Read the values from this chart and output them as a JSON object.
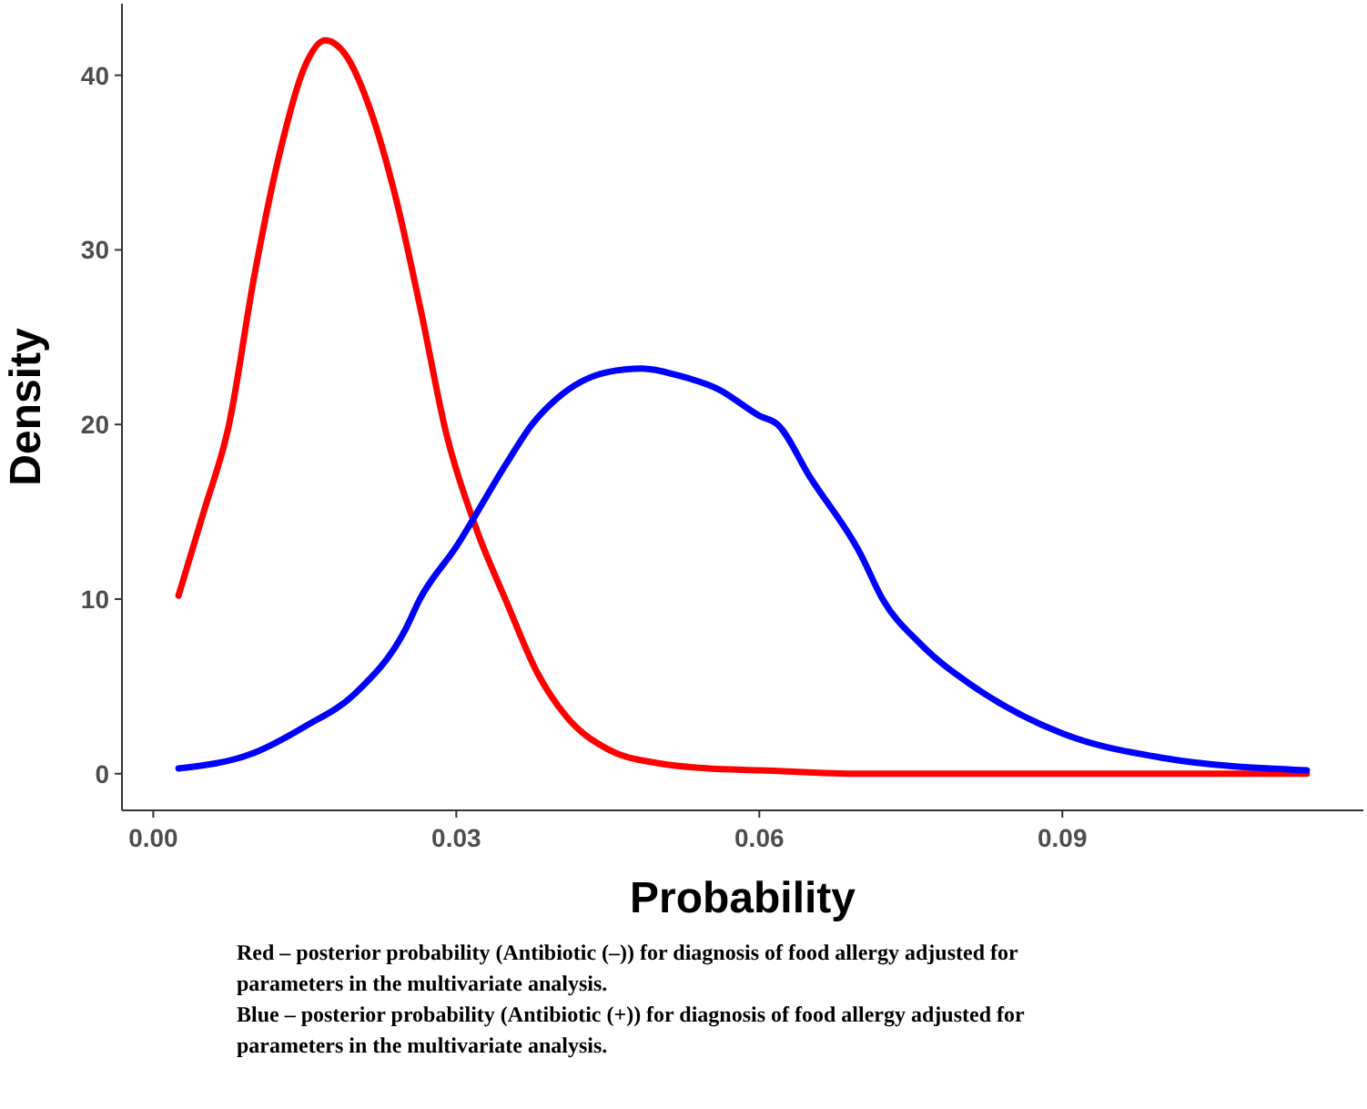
{
  "chart_data": {
    "type": "line",
    "xlabel": "Probability",
    "ylabel": "Density",
    "xlim": [
      -0.0031,
      0.1198
    ],
    "xticks": [
      {
        "value": 0,
        "label": "0.00"
      },
      {
        "value": 0.03,
        "label": "0.03"
      },
      {
        "value": 0.06,
        "label": "0.06"
      },
      {
        "value": 0.09,
        "label": "0.09"
      }
    ],
    "ylim": [
      -2.1,
      44.1
    ],
    "yticks": [
      0,
      10,
      20,
      30,
      40
    ],
    "grid": false,
    "line_style": "solid",
    "marker": "none",
    "series": [
      {
        "color": "#ff0000",
        "x": [
          0.0025,
          0.005,
          0.0075,
          0.01,
          0.0125,
          0.015,
          0.017,
          0.019,
          0.0215,
          0.024,
          0.0265,
          0.029,
          0.032,
          0.035,
          0.038,
          0.041,
          0.045,
          0.05,
          0.055,
          0.06,
          0.07,
          0.08,
          0.1142
        ],
        "values": [
          10.2,
          15,
          20,
          28.5,
          35.5,
          40.5,
          42,
          41.2,
          38,
          33,
          26.5,
          19.5,
          14,
          9.8,
          5.8,
          3.2,
          1.4,
          0.6,
          0.3,
          0.2,
          0,
          0,
          0
        ]
      },
      {
        "color": "#0000ff",
        "x": [
          0.0025,
          0.01,
          0.015,
          0.02,
          0.025,
          0.0264,
          0.03,
          0.035,
          0.0375,
          0.04,
          0.045,
          0.0484,
          0.052,
          0.056,
          0.06,
          0.0618,
          0.065,
          0.07,
          0.0722,
          0.076,
          0.0812,
          0.09,
          0.1,
          0.1142
        ],
        "values": [
          0.3,
          1.2,
          2.7,
          4.6,
          8.3,
          10,
          13,
          17.8,
          20,
          21.5,
          23,
          23.2,
          22.8,
          22,
          20.5,
          20,
          17,
          12.6,
          10,
          7.4,
          5,
          2.3,
          0.9,
          0.2
        ]
      }
    ],
    "annotations": [
      "Red – posterior probability (Antibiotic (–)) for diagnosis of food allergy adjusted for parameters in the multivariate analysis.",
      "Blue – posterior probability (Antibiotic (+)) for diagnosis of food allergy adjusted for parameters in the multivariate analysis."
    ]
  }
}
